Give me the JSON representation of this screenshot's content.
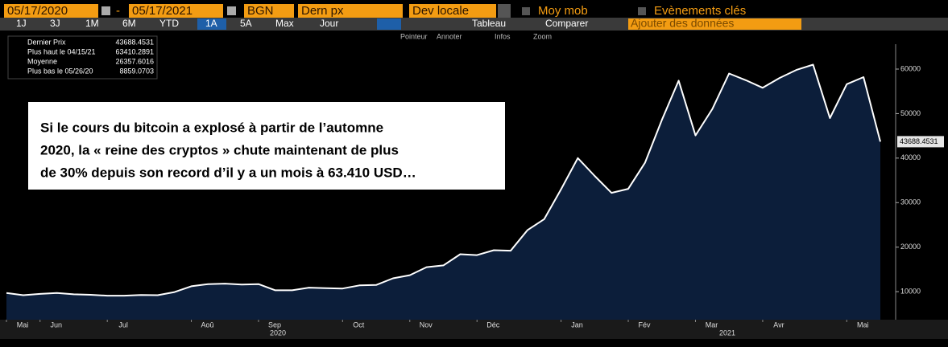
{
  "toolbar": {
    "start_date": "05/17/2020",
    "separator": "-",
    "end_date": "05/17/2021",
    "market": "BGN",
    "field": "Dern px",
    "currency": "Dev locale",
    "moving_avg": "Moy mob",
    "events": "Evènements clés",
    "periods": [
      "1J",
      "3J",
      "1M",
      "6M",
      "YTD",
      "1A",
      "5A",
      "Max"
    ],
    "frequency": "Jour",
    "table": "Tableau",
    "compare": "Comparer",
    "add_data": "Ajouter des données",
    "tools": [
      "Pointeur",
      "Annoter",
      "Infos",
      "Zoom"
    ]
  },
  "annotation": [
    "Si le cours du bitcoin a explosé à partir de l’automne",
    "2020, la « reine des cryptos » chute maintenant de plus",
    "de 30% depuis son record d’il y a un mois à 63.410 USD…"
  ],
  "chart_data": {
    "type": "area",
    "stats": [
      {
        "label": "Dernier Prix",
        "value": 43688.4531
      },
      {
        "label": "Plus haut le 04/15/21",
        "value": 63410.2891
      },
      {
        "label": "Moyenne",
        "value": 26357.6016
      },
      {
        "label": "Plus bas le 05/26/20",
        "value": 8859.0703
      }
    ],
    "categories": [
      "Mai",
      null,
      "Jun",
      null,
      null,
      null,
      "Jul",
      null,
      null,
      null,
      null,
      "Aoû",
      null,
      null,
      null,
      "Sep",
      null,
      null,
      null,
      null,
      "Oct",
      null,
      null,
      null,
      "Nov",
      null,
      null,
      null,
      "Déc",
      null,
      null,
      null,
      null,
      "Jan",
      null,
      null,
      null,
      "Fév",
      null,
      null,
      null,
      "Mar",
      null,
      null,
      null,
      "Avr",
      null,
      null,
      null,
      null,
      "Mai",
      null,
      null
    ],
    "years": [
      "2020",
      "2021"
    ],
    "values": [
      9700,
      9200,
      9500,
      9700,
      9400,
      9300,
      9100,
      9100,
      9250,
      9200,
      9900,
      11200,
      11700,
      11800,
      11600,
      11700,
      10300,
      10300,
      10900,
      10800,
      10700,
      11400,
      11500,
      13000,
      13700,
      15500,
      15900,
      18400,
      18200,
      19300,
      19200,
      23800,
      26300,
      33000,
      40000,
      36000,
      32200,
      33100,
      39000,
      48600,
      57400,
      45100,
      51000,
      59000,
      57500,
      55800,
      58000,
      59800,
      61000,
      49000,
      56600,
      58200,
      43688.4531
    ],
    "color": "#0c1e3a",
    "line_color": "#ffffff",
    "ylim": [
      3700,
      68300
    ],
    "yticks": [
      10000,
      20000,
      30000,
      40000,
      50000,
      60000
    ]
  }
}
